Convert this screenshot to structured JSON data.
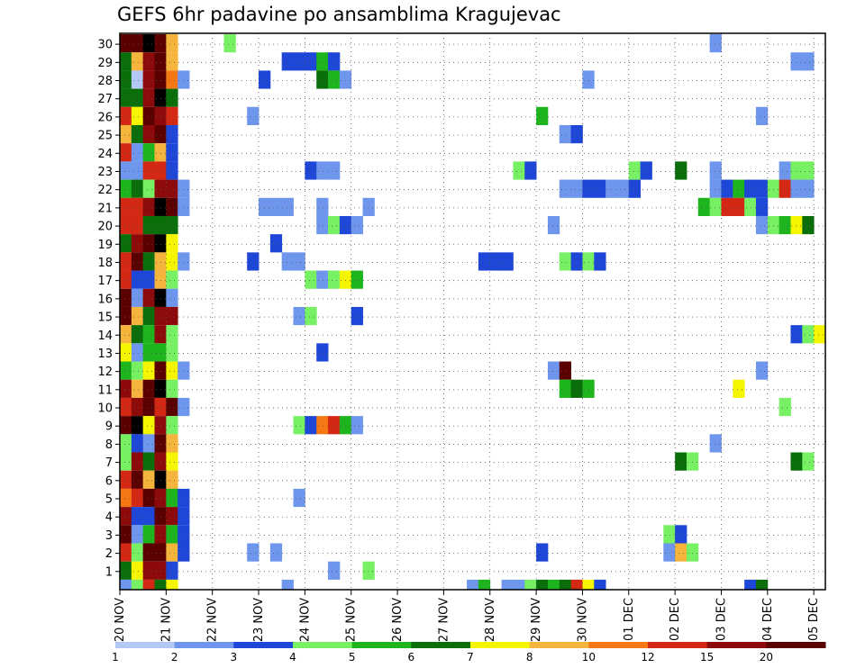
{
  "chart_data": {
    "type": "heatmap",
    "title": "GEFS 6hr padavine po ansamblima Kragujevac",
    "x_labels": [
      "20 NOV",
      "21 NOV",
      "22 NOV",
      "23 NOV",
      "24 NOV",
      "25 NOV",
      "26 NOV",
      "27 NOV",
      "28 NOV",
      "29 NOV",
      "30 NOV",
      "01 DEC",
      "02 DEC",
      "03 DEC",
      "04 DEC",
      "05 DEC"
    ],
    "y_labels": [
      "1",
      "2",
      "3",
      "4",
      "5",
      "6",
      "7",
      "8",
      "9",
      "10",
      "11",
      "12",
      "13",
      "14",
      "15",
      "16",
      "17",
      "18",
      "19",
      "20",
      "21",
      "22",
      "23",
      "24",
      "25",
      "26",
      "27",
      "28",
      "29",
      "30"
    ],
    "y_range": [
      0,
      30
    ],
    "time_steps": 61,
    "time_step_hours": 6,
    "grid": true,
    "colorbar": {
      "labels": [
        "1",
        "2",
        "3",
        "4",
        "5",
        "6",
        "7",
        "8",
        "10",
        "12",
        "15",
        "20"
      ],
      "colors": [
        "#b4c8f5",
        "#6e96ec",
        "#1e46d7",
        "#78f064",
        "#1eb41e",
        "#0a6e0a",
        "#f5f500",
        "#f5b43c",
        "#f57814",
        "#d22814",
        "#8c0a0a",
        "#5a0000"
      ]
    },
    "cells": [
      [
        0,
        30,
        11
      ],
      [
        1,
        30,
        11
      ],
      [
        2,
        30,
        12
      ],
      [
        3,
        30,
        11
      ],
      [
        4,
        30,
        7
      ],
      [
        9,
        30,
        3
      ],
      [
        51,
        30,
        1
      ],
      [
        0,
        29,
        5
      ],
      [
        1,
        29,
        7
      ],
      [
        2,
        29,
        10
      ],
      [
        3,
        29,
        11
      ],
      [
        4,
        29,
        7
      ],
      [
        14,
        29,
        2
      ],
      [
        15,
        29,
        2
      ],
      [
        16,
        29,
        2
      ],
      [
        17,
        29,
        4
      ],
      [
        18,
        29,
        2
      ],
      [
        58,
        29,
        1
      ],
      [
        59,
        29,
        1
      ],
      [
        0,
        28,
        5
      ],
      [
        1,
        28,
        0
      ],
      [
        2,
        28,
        10
      ],
      [
        3,
        28,
        11
      ],
      [
        4,
        28,
        8
      ],
      [
        5,
        28,
        1
      ],
      [
        12,
        28,
        2
      ],
      [
        17,
        28,
        5
      ],
      [
        18,
        28,
        4
      ],
      [
        19,
        28,
        1
      ],
      [
        40,
        28,
        1
      ],
      [
        0,
        27,
        5
      ],
      [
        1,
        27,
        5
      ],
      [
        2,
        27,
        10
      ],
      [
        3,
        27,
        12
      ],
      [
        4,
        27,
        5
      ],
      [
        0,
        26,
        9
      ],
      [
        1,
        26,
        6
      ],
      [
        2,
        26,
        11
      ],
      [
        3,
        26,
        10
      ],
      [
        4,
        26,
        9
      ],
      [
        11,
        26,
        1
      ],
      [
        36,
        26,
        4
      ],
      [
        55,
        26,
        1
      ],
      [
        0,
        25,
        7
      ],
      [
        1,
        25,
        5
      ],
      [
        2,
        25,
        10
      ],
      [
        3,
        25,
        11
      ],
      [
        4,
        25,
        2
      ],
      [
        38,
        25,
        1
      ],
      [
        39,
        25,
        2
      ],
      [
        0,
        24,
        9
      ],
      [
        1,
        24,
        1
      ],
      [
        2,
        24,
        4
      ],
      [
        3,
        24,
        7
      ],
      [
        4,
        24,
        2
      ],
      [
        0,
        23,
        1
      ],
      [
        1,
        23,
        1
      ],
      [
        2,
        23,
        9
      ],
      [
        3,
        23,
        9
      ],
      [
        4,
        23,
        2
      ],
      [
        16,
        23,
        2
      ],
      [
        17,
        23,
        1
      ],
      [
        18,
        23,
        1
      ],
      [
        34,
        23,
        3
      ],
      [
        35,
        23,
        2
      ],
      [
        44,
        23,
        3
      ],
      [
        45,
        23,
        2
      ],
      [
        48,
        23,
        5
      ],
      [
        51,
        23,
        1
      ],
      [
        57,
        23,
        1
      ],
      [
        58,
        23,
        3
      ],
      [
        59,
        23,
        3
      ],
      [
        0,
        22,
        4
      ],
      [
        1,
        22,
        5
      ],
      [
        2,
        22,
        3
      ],
      [
        3,
        22,
        10
      ],
      [
        4,
        22,
        10
      ],
      [
        5,
        22,
        1
      ],
      [
        38,
        22,
        1
      ],
      [
        39,
        22,
        1
      ],
      [
        40,
        22,
        2
      ],
      [
        41,
        22,
        2
      ],
      [
        42,
        22,
        1
      ],
      [
        43,
        22,
        1
      ],
      [
        44,
        22,
        2
      ],
      [
        51,
        22,
        1
      ],
      [
        52,
        22,
        2
      ],
      [
        53,
        22,
        4
      ],
      [
        54,
        22,
        2
      ],
      [
        55,
        22,
        2
      ],
      [
        56,
        22,
        3
      ],
      [
        57,
        22,
        9
      ],
      [
        58,
        22,
        1
      ],
      [
        59,
        22,
        1
      ],
      [
        0,
        21,
        9
      ],
      [
        1,
        21,
        9
      ],
      [
        2,
        21,
        10
      ],
      [
        3,
        21,
        12
      ],
      [
        4,
        21,
        11
      ],
      [
        5,
        21,
        1
      ],
      [
        12,
        21,
        1
      ],
      [
        13,
        21,
        1
      ],
      [
        14,
        21,
        1
      ],
      [
        17,
        21,
        1
      ],
      [
        21,
        21,
        1
      ],
      [
        50,
        21,
        4
      ],
      [
        51,
        21,
        3
      ],
      [
        52,
        21,
        9
      ],
      [
        53,
        21,
        9
      ],
      [
        54,
        21,
        3
      ],
      [
        55,
        21,
        2
      ],
      [
        0,
        20,
        9
      ],
      [
        1,
        20,
        9
      ],
      [
        2,
        20,
        5
      ],
      [
        3,
        20,
        5
      ],
      [
        4,
        20,
        5
      ],
      [
        17,
        20,
        1
      ],
      [
        18,
        20,
        3
      ],
      [
        19,
        20,
        2
      ],
      [
        20,
        20,
        1
      ],
      [
        37,
        20,
        1
      ],
      [
        55,
        20,
        1
      ],
      [
        56,
        20,
        3
      ],
      [
        57,
        20,
        4
      ],
      [
        58,
        20,
        6
      ],
      [
        59,
        20,
        5
      ],
      [
        0,
        19,
        5
      ],
      [
        1,
        19,
        10
      ],
      [
        2,
        19,
        11
      ],
      [
        3,
        19,
        12
      ],
      [
        4,
        19,
        6
      ],
      [
        13,
        19,
        2
      ],
      [
        0,
        18,
        9
      ],
      [
        1,
        18,
        11
      ],
      [
        2,
        18,
        5
      ],
      [
        3,
        18,
        7
      ],
      [
        4,
        18,
        6
      ],
      [
        5,
        18,
        1
      ],
      [
        11,
        18,
        2
      ],
      [
        14,
        18,
        1
      ],
      [
        15,
        18,
        1
      ],
      [
        31,
        18,
        2
      ],
      [
        32,
        18,
        2
      ],
      [
        33,
        18,
        2
      ],
      [
        38,
        18,
        3
      ],
      [
        39,
        18,
        2
      ],
      [
        40,
        18,
        3
      ],
      [
        41,
        18,
        2
      ],
      [
        0,
        17,
        9
      ],
      [
        1,
        17,
        2
      ],
      [
        2,
        17,
        2
      ],
      [
        3,
        17,
        7
      ],
      [
        4,
        17,
        3
      ],
      [
        16,
        17,
        3
      ],
      [
        17,
        17,
        1
      ],
      [
        18,
        17,
        3
      ],
      [
        19,
        17,
        6
      ],
      [
        20,
        17,
        4
      ],
      [
        0,
        16,
        11
      ],
      [
        1,
        16,
        1
      ],
      [
        2,
        16,
        10
      ],
      [
        3,
        16,
        12
      ],
      [
        4,
        16,
        1
      ],
      [
        0,
        15,
        11
      ],
      [
        1,
        15,
        7
      ],
      [
        2,
        15,
        5
      ],
      [
        3,
        15,
        10
      ],
      [
        4,
        15,
        10
      ],
      [
        15,
        15,
        1
      ],
      [
        16,
        15,
        3
      ],
      [
        20,
        15,
        2
      ],
      [
        0,
        14,
        7
      ],
      [
        1,
        14,
        5
      ],
      [
        2,
        14,
        4
      ],
      [
        3,
        14,
        10
      ],
      [
        4,
        14,
        3
      ],
      [
        58,
        14,
        2
      ],
      [
        59,
        14,
        3
      ],
      [
        60,
        14,
        6
      ],
      [
        0,
        13,
        6
      ],
      [
        1,
        13,
        1
      ],
      [
        2,
        13,
        4
      ],
      [
        3,
        13,
        4
      ],
      [
        4,
        13,
        3
      ],
      [
        17,
        13,
        2
      ],
      [
        0,
        12,
        4
      ],
      [
        1,
        12,
        3
      ],
      [
        2,
        12,
        6
      ],
      [
        3,
        12,
        11
      ],
      [
        4,
        12,
        6
      ],
      [
        5,
        12,
        1
      ],
      [
        37,
        12,
        1
      ],
      [
        38,
        12,
        11
      ],
      [
        55,
        12,
        1
      ],
      [
        0,
        11,
        10
      ],
      [
        1,
        11,
        7
      ],
      [
        2,
        11,
        11
      ],
      [
        3,
        11,
        12
      ],
      [
        4,
        11,
        3
      ],
      [
        38,
        11,
        4
      ],
      [
        39,
        11,
        5
      ],
      [
        40,
        11,
        4
      ],
      [
        53,
        11,
        6
      ],
      [
        0,
        10,
        9
      ],
      [
        1,
        10,
        10
      ],
      [
        2,
        10,
        11
      ],
      [
        3,
        10,
        9
      ],
      [
        4,
        10,
        11
      ],
      [
        5,
        10,
        1
      ],
      [
        57,
        10,
        3
      ],
      [
        0,
        9,
        11
      ],
      [
        1,
        9,
        12
      ],
      [
        2,
        9,
        6
      ],
      [
        3,
        9,
        10
      ],
      [
        4,
        9,
        3
      ],
      [
        15,
        9,
        3
      ],
      [
        16,
        9,
        2
      ],
      [
        17,
        9,
        8
      ],
      [
        18,
        9,
        9
      ],
      [
        19,
        9,
        4
      ],
      [
        20,
        9,
        1
      ],
      [
        0,
        8,
        3
      ],
      [
        1,
        8,
        2
      ],
      [
        2,
        8,
        1
      ],
      [
        3,
        8,
        11
      ],
      [
        4,
        8,
        7
      ],
      [
        51,
        8,
        1
      ],
      [
        0,
        7,
        3
      ],
      [
        1,
        7,
        10
      ],
      [
        2,
        7,
        5
      ],
      [
        3,
        7,
        10
      ],
      [
        4,
        7,
        6
      ],
      [
        48,
        7,
        5
      ],
      [
        49,
        7,
        3
      ],
      [
        58,
        7,
        5
      ],
      [
        59,
        7,
        3
      ],
      [
        0,
        6,
        9
      ],
      [
        1,
        6,
        11
      ],
      [
        2,
        6,
        7
      ],
      [
        3,
        6,
        12
      ],
      [
        4,
        6,
        7
      ],
      [
        0,
        5,
        8
      ],
      [
        1,
        5,
        9
      ],
      [
        2,
        5,
        11
      ],
      [
        3,
        5,
        10
      ],
      [
        4,
        5,
        4
      ],
      [
        5,
        5,
        2
      ],
      [
        15,
        5,
        1
      ],
      [
        0,
        4,
        10
      ],
      [
        1,
        4,
        2
      ],
      [
        2,
        4,
        2
      ],
      [
        3,
        4,
        11
      ],
      [
        4,
        4,
        10
      ],
      [
        5,
        4,
        2
      ],
      [
        0,
        3,
        11
      ],
      [
        1,
        3,
        1
      ],
      [
        2,
        3,
        4
      ],
      [
        3,
        3,
        10
      ],
      [
        4,
        3,
        4
      ],
      [
        5,
        3,
        2
      ],
      [
        47,
        3,
        3
      ],
      [
        48,
        3,
        2
      ],
      [
        0,
        2,
        9
      ],
      [
        1,
        2,
        3
      ],
      [
        2,
        2,
        11
      ],
      [
        3,
        2,
        11
      ],
      [
        4,
        2,
        7
      ],
      [
        5,
        2,
        2
      ],
      [
        11,
        2,
        1
      ],
      [
        13,
        2,
        1
      ],
      [
        36,
        2,
        2
      ],
      [
        47,
        2,
        1
      ],
      [
        48,
        2,
        7
      ],
      [
        49,
        2,
        3
      ],
      [
        0,
        1,
        5
      ],
      [
        1,
        1,
        6
      ],
      [
        2,
        1,
        10
      ],
      [
        3,
        1,
        10
      ],
      [
        4,
        1,
        2
      ],
      [
        18,
        1,
        1
      ],
      [
        21,
        1,
        3
      ],
      [
        0,
        0,
        1
      ],
      [
        1,
        0,
        3
      ],
      [
        2,
        0,
        9
      ],
      [
        3,
        0,
        5
      ],
      [
        4,
        0,
        6
      ],
      [
        14,
        0,
        1
      ],
      [
        30,
        0,
        1
      ],
      [
        31,
        0,
        4
      ],
      [
        33,
        0,
        1
      ],
      [
        34,
        0,
        1
      ],
      [
        35,
        0,
        3
      ],
      [
        36,
        0,
        5
      ],
      [
        37,
        0,
        4
      ],
      [
        38,
        0,
        5
      ],
      [
        39,
        0,
        9
      ],
      [
        40,
        0,
        6
      ],
      [
        41,
        0,
        2
      ],
      [
        54,
        0,
        2
      ],
      [
        55,
        0,
        5
      ]
    ]
  }
}
